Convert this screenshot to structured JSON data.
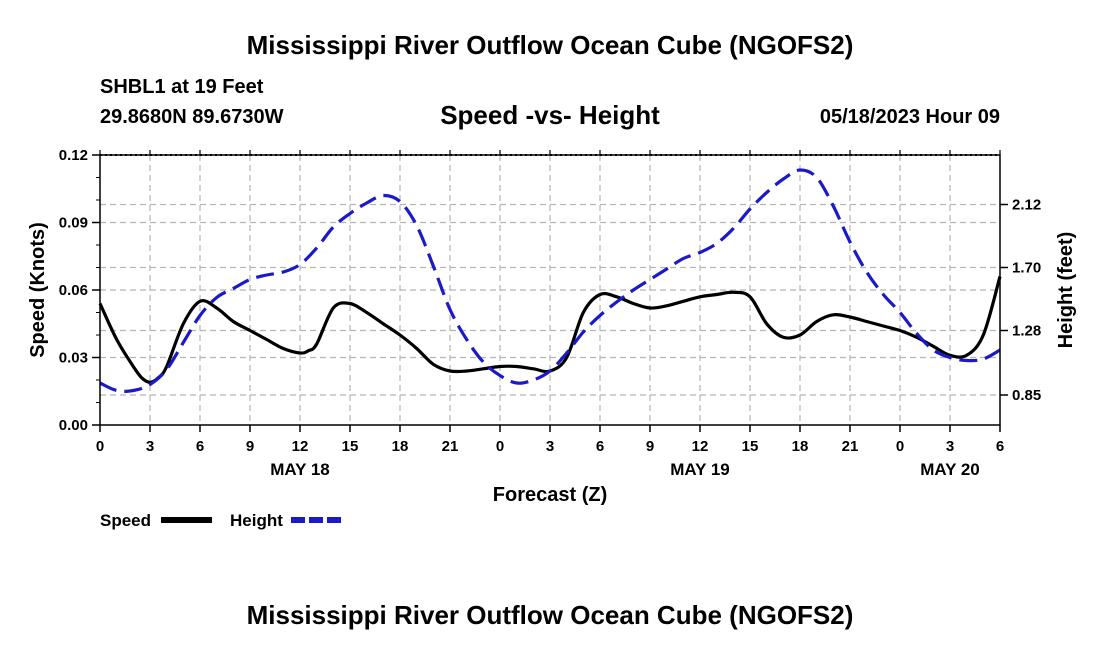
{
  "header": {
    "title": "Mississippi River Outflow Ocean Cube (NGOFS2)",
    "station": "SHBL1 at 19 Feet",
    "coordinates": "29.8680N  89.6730W",
    "subtitle": "Speed -vs- Height",
    "datetime": "05/18/2023 Hour 09"
  },
  "footer": {
    "title": "Mississippi River Outflow Ocean Cube (NGOFS2)"
  },
  "chart_data": {
    "type": "line",
    "title": "Speed -vs- Height",
    "xlabel": "Forecast (Z)",
    "ylabel_left": "Speed (Knots)",
    "ylabel_right": "Height (feet)",
    "x_hours_range": [
      0,
      54
    ],
    "x_tick_step": 3,
    "x_tick_labels": [
      "0",
      "3",
      "6",
      "9",
      "12",
      "15",
      "18",
      "21",
      "0",
      "3",
      "6",
      "9",
      "12",
      "15",
      "18",
      "21",
      "0",
      "3",
      "6"
    ],
    "day_labels": [
      {
        "label": "MAY 18",
        "hour": 12
      },
      {
        "label": "MAY 19",
        "hour": 36
      },
      {
        "label": "MAY 20",
        "hour": 51
      }
    ],
    "y_left": {
      "min": 0.0,
      "max": 0.12,
      "ticks": [
        "0.00",
        "0.03",
        "0.06",
        "0.09",
        "0.12"
      ]
    },
    "y_right": {
      "min": 0.65,
      "max": 2.45,
      "ticks": [
        "0.85",
        "1.28",
        "1.70",
        "2.12"
      ]
    },
    "legend": [
      "Speed",
      "Height"
    ],
    "legend_position": "bottom-left",
    "grid": true,
    "series": [
      {
        "name": "Speed",
        "axis": "left",
        "color": "#000000",
        "style": "solid",
        "x": [
          0,
          1,
          2,
          2.5,
          3,
          3.5,
          4,
          5,
          6,
          7,
          8,
          9,
          10,
          11,
          12,
          12.5,
          13,
          14,
          15,
          16,
          17,
          18,
          19,
          20,
          21,
          22,
          23,
          24,
          25,
          26,
          27,
          28,
          29,
          30,
          31,
          32,
          33,
          34,
          35,
          36,
          37,
          38,
          39,
          40,
          41,
          42,
          43,
          44,
          45,
          46,
          47,
          48,
          49,
          50,
          51,
          52,
          53,
          54
        ],
        "values": [
          0.054,
          0.038,
          0.026,
          0.021,
          0.019,
          0.021,
          0.026,
          0.045,
          0.055,
          0.052,
          0.046,
          0.042,
          0.038,
          0.034,
          0.032,
          0.033,
          0.036,
          0.052,
          0.054,
          0.05,
          0.045,
          0.04,
          0.034,
          0.027,
          0.024,
          0.024,
          0.025,
          0.026,
          0.026,
          0.025,
          0.024,
          0.03,
          0.05,
          0.058,
          0.057,
          0.054,
          0.052,
          0.053,
          0.055,
          0.057,
          0.058,
          0.059,
          0.057,
          0.045,
          0.039,
          0.04,
          0.046,
          0.049,
          0.048,
          0.046,
          0.044,
          0.042,
          0.039,
          0.035,
          0.031,
          0.031,
          0.04,
          0.066
        ]
      },
      {
        "name": "Height",
        "axis": "right",
        "color": "#1a1ac8",
        "style": "dashed",
        "x": [
          0,
          1,
          2,
          3,
          4,
          5,
          6,
          7,
          8,
          9,
          10,
          11,
          12,
          13,
          14,
          15,
          16,
          17,
          18,
          19,
          20,
          21,
          22,
          23,
          24,
          25,
          26,
          27,
          28,
          29,
          30,
          31,
          32,
          33,
          34,
          35,
          36,
          37,
          38,
          39,
          40,
          41,
          42,
          43,
          44,
          45,
          46,
          47,
          48,
          49,
          50,
          51,
          52,
          53,
          54
        ],
        "values": [
          0.93,
          0.88,
          0.88,
          0.92,
          1.02,
          1.2,
          1.38,
          1.5,
          1.56,
          1.62,
          1.65,
          1.67,
          1.72,
          1.83,
          1.97,
          2.06,
          2.13,
          2.18,
          2.14,
          1.98,
          1.71,
          1.42,
          1.22,
          1.07,
          0.98,
          0.93,
          0.95,
          1.01,
          1.13,
          1.27,
          1.38,
          1.47,
          1.55,
          1.62,
          1.69,
          1.76,
          1.8,
          1.86,
          1.96,
          2.09,
          2.2,
          2.29,
          2.35,
          2.3,
          2.11,
          1.87,
          1.67,
          1.52,
          1.4,
          1.26,
          1.15,
          1.1,
          1.08,
          1.09,
          1.15
        ]
      }
    ]
  }
}
